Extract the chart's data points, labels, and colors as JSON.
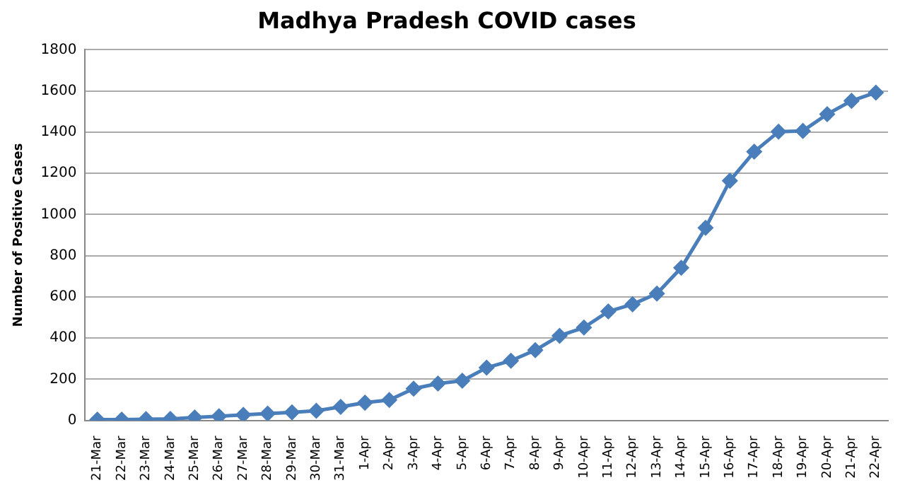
{
  "chart_data": {
    "type": "line",
    "title": "Madhya Pradesh COVID cases",
    "ylabel": "Number of Positive Cases",
    "categories": [
      "21-Mar",
      "22-Mar",
      "23-Mar",
      "24-Mar",
      "25-Mar",
      "26-Mar",
      "27-Mar",
      "28-Mar",
      "29-Mar",
      "30-Mar",
      "31-Mar",
      "1-Apr",
      "2-Apr",
      "3-Apr",
      "4-Apr",
      "5-Apr",
      "6-Apr",
      "7-Apr",
      "8-Apr",
      "9-Apr",
      "10-Apr",
      "11-Apr",
      "12-Apr",
      "13-Apr",
      "14-Apr",
      "15-Apr",
      "16-Apr",
      "17-Apr",
      "18-Apr",
      "19-Apr",
      "20-Apr",
      "21-Apr",
      "22-Apr"
    ],
    "series": [
      {
        "color": "#4a7ebb",
        "values": [
          4,
          4,
          6,
          7,
          14,
          20,
          27,
          33,
          39,
          47,
          66,
          86,
          99,
          154,
          179,
          193,
          256,
          290,
          341,
          411,
          451,
          529,
          564,
          616,
          741,
          935,
          1164,
          1305,
          1402,
          1406,
          1487,
          1552,
          1592
        ]
      }
    ],
    "ylim": [
      0,
      1800
    ],
    "yticks": [
      0,
      200,
      400,
      600,
      800,
      1000,
      1200,
      1400,
      1600,
      1800
    ],
    "grid": "y",
    "legend": false,
    "marker": "diamond",
    "line_style": "solid"
  }
}
